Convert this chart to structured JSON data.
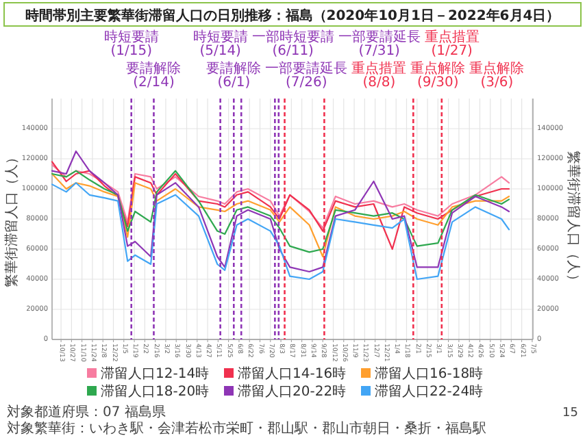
{
  "chart_data": {
    "type": "line",
    "title": "時間帯別主要繁華街滞留人口の日別推移：福島（2020年10月1日－2022年6月4日）",
    "ylabel": "繁華街滞留人口（人）",
    "y2label": "繁華街滞留人口（人）",
    "x": [
      "2020-10-01",
      "2020-10-20",
      "2020-11-02",
      "2020-11-20",
      "2020-12-10",
      "2020-12-28",
      "2021-01-10",
      "2021-01-20",
      "2021-02-10",
      "2021-02-18",
      "2021-03-15",
      "2021-04-15",
      "2021-05-10",
      "2021-05-20",
      "2021-06-05",
      "2021-06-20",
      "2021-07-20",
      "2021-08-01",
      "2021-08-15",
      "2021-09-10",
      "2021-09-28",
      "2021-10-15",
      "2021-11-10",
      "2021-12-05",
      "2021-12-30",
      "2022-01-15",
      "2022-02-01",
      "2022-03-01",
      "2022-03-20",
      "2022-04-20",
      "2022-05-25",
      "2022-06-04"
    ],
    "series": [
      {
        "name": "滞留人口12-14時",
        "color": "#f77ca0",
        "values": [
          116000,
          108000,
          112000,
          110000,
          104000,
          98000,
          78000,
          110000,
          108000,
          100000,
          108000,
          95000,
          92000,
          90000,
          98000,
          100000,
          92000,
          82000,
          96000,
          85000,
          74000,
          95000,
          90000,
          92000,
          88000,
          90000,
          86000,
          82000,
          90000,
          96000,
          108000,
          104000
        ]
      },
      {
        "name": "滞留人口14-16時",
        "color": "#f0304e",
        "values": [
          118000,
          105000,
          110000,
          112000,
          102000,
          95000,
          75000,
          108000,
          104000,
          96000,
          110000,
          92000,
          90000,
          88000,
          96000,
          98000,
          88000,
          80000,
          96000,
          86000,
          72000,
          92000,
          88000,
          90000,
          60000,
          88000,
          84000,
          80000,
          86000,
          95000,
          100000,
          100000
        ]
      },
      {
        "name": "滞留人口16-18時",
        "color": "#ff9f2e",
        "values": [
          110000,
          100000,
          104000,
          102000,
          98000,
          95000,
          68000,
          104000,
          100000,
          92000,
          100000,
          88000,
          86000,
          85000,
          90000,
          92000,
          86000,
          78000,
          88000,
          76000,
          55000,
          88000,
          82000,
          80000,
          82000,
          85000,
          80000,
          76000,
          88000,
          92000,
          92000,
          95000
        ]
      },
      {
        "name": "滞留人口18-20時",
        "color": "#2ea84f",
        "values": [
          110000,
          108000,
          112000,
          106000,
          100000,
          96000,
          72000,
          85000,
          78000,
          98000,
          112000,
          92000,
          72000,
          70000,
          86000,
          88000,
          82000,
          74000,
          62000,
          58000,
          60000,
          86000,
          84000,
          82000,
          84000,
          80000,
          62000,
          64000,
          86000,
          96000,
          90000,
          93000
        ]
      },
      {
        "name": "滞留人口20-22時",
        "color": "#8e35b5",
        "values": [
          112000,
          110000,
          125000,
          112000,
          104000,
          96000,
          62000,
          65000,
          55000,
          96000,
          104000,
          88000,
          55000,
          48000,
          82000,
          86000,
          80000,
          60000,
          48000,
          45000,
          48000,
          82000,
          86000,
          105000,
          80000,
          82000,
          48000,
          48000,
          84000,
          95000,
          88000,
          85000
        ]
      },
      {
        "name": "滞留人口22-24時",
        "color": "#42a5f5",
        "values": [
          103000,
          98000,
          104000,
          96000,
          94000,
          92000,
          52000,
          56000,
          50000,
          90000,
          96000,
          82000,
          50000,
          46000,
          76000,
          80000,
          72000,
          62000,
          42000,
          40000,
          45000,
          80000,
          78000,
          76000,
          74000,
          80000,
          40000,
          42000,
          78000,
          88000,
          80000,
          73000
        ]
      }
    ],
    "xlim": [
      "2020-10-01",
      "2022-07-06"
    ],
    "xticks": [
      {
        "value": "2020-10-13",
        "label": "10/13"
      },
      {
        "value": "2020-10-27",
        "label": "10/27"
      },
      {
        "value": "2020-11-10",
        "label": "11/10"
      },
      {
        "value": "2020-11-24",
        "label": "11/24"
      },
      {
        "value": "2020-12-08",
        "label": "12/8"
      },
      {
        "value": "2020-12-22",
        "label": "12/22"
      },
      {
        "value": "2021-01-05",
        "label": "1/5"
      },
      {
        "value": "2021-01-19",
        "label": "1/19"
      },
      {
        "value": "2021-02-02",
        "label": "2/2"
      },
      {
        "value": "2021-02-16",
        "label": "2/16"
      },
      {
        "value": "2021-03-02",
        "label": "3/2"
      },
      {
        "value": "2021-03-16",
        "label": "3/16"
      },
      {
        "value": "2021-03-30",
        "label": "3/30"
      },
      {
        "value": "2021-04-13",
        "label": "4/13"
      },
      {
        "value": "2021-04-27",
        "label": "4/27"
      },
      {
        "value": "2021-05-11",
        "label": "5/11"
      },
      {
        "value": "2021-05-25",
        "label": "5/25"
      },
      {
        "value": "2021-06-08",
        "label": "6/8"
      },
      {
        "value": "2021-06-22",
        "label": "6/22"
      },
      {
        "value": "2021-07-06",
        "label": "7/6"
      },
      {
        "value": "2021-07-20",
        "label": "7/20"
      },
      {
        "value": "2021-08-03",
        "label": "8/3"
      },
      {
        "value": "2021-08-17",
        "label": "8/17"
      },
      {
        "value": "2021-08-31",
        "label": "8/31"
      },
      {
        "value": "2021-09-14",
        "label": "9/14"
      },
      {
        "value": "2021-09-28",
        "label": "9/28"
      },
      {
        "value": "2021-10-12",
        "label": "10/12"
      },
      {
        "value": "2021-10-26",
        "label": "10/26"
      },
      {
        "value": "2021-11-09",
        "label": "11/9"
      },
      {
        "value": "2021-11-23",
        "label": "11/23"
      },
      {
        "value": "2021-12-07",
        "label": "12/7"
      },
      {
        "value": "2021-12-21",
        "label": "12/21"
      },
      {
        "value": "2022-01-04",
        "label": "1/4"
      },
      {
        "value": "2022-01-18",
        "label": "1/18"
      },
      {
        "value": "2022-02-01",
        "label": "2/1"
      },
      {
        "value": "2022-02-15",
        "label": "2/15"
      },
      {
        "value": "2022-03-01",
        "label": "3/1"
      },
      {
        "value": "2022-03-15",
        "label": "3/15"
      },
      {
        "value": "2022-03-29",
        "label": "3/29"
      },
      {
        "value": "2022-04-12",
        "label": "4/12"
      },
      {
        "value": "2022-04-26",
        "label": "4/26"
      },
      {
        "value": "2022-05-10",
        "label": "5/10"
      },
      {
        "value": "2022-05-24",
        "label": "5/24"
      },
      {
        "value": "2022-06-07",
        "label": "6/7"
      },
      {
        "value": "2022-06-21",
        "label": "6/21"
      },
      {
        "value": "2022-07-05",
        "label": "7/5"
      }
    ],
    "ylim": [
      0,
      160000
    ],
    "yticks": [
      0,
      20000,
      40000,
      60000,
      80000,
      100000,
      120000,
      140000
    ],
    "y2lim": [
      0,
      160000
    ],
    "y2ticks": [
      0,
      20000,
      40000,
      60000,
      80000,
      100000,
      120000,
      140000
    ],
    "ref_lines": [
      {
        "axis": "x",
        "value": "2021-01-15",
        "label": "時短要請 (1/15)",
        "color": "#8e35b5",
        "line_style": "dashed"
      },
      {
        "axis": "x",
        "value": "2021-02-14",
        "label": "要請解除 (2/14)",
        "color": "#8e35b5",
        "line_style": "dashed"
      },
      {
        "axis": "x",
        "value": "2021-05-14",
        "label": "時短要請 (5/14)",
        "color": "#8e35b5",
        "line_style": "dashed"
      },
      {
        "axis": "x",
        "value": "2021-06-01",
        "label": "要請解除 (6/1)",
        "color": "#8e35b5",
        "line_style": "dashed"
      },
      {
        "axis": "x",
        "value": "2021-06-11",
        "label": "一部時短要請 (6/11)",
        "color": "#8e35b5",
        "line_style": "dashed"
      },
      {
        "axis": "x",
        "value": "2021-07-26",
        "label": "一部要請延長 (7/26)",
        "color": "#8e35b5",
        "line_style": "dashed"
      },
      {
        "axis": "x",
        "value": "2021-07-31",
        "label": "一部要請延長 (7/31)",
        "color": "#8e35b5",
        "line_style": "dashed"
      },
      {
        "axis": "x",
        "value": "2021-08-08",
        "label": "重点措置 (8/8)",
        "color": "#f0304e",
        "line_style": "dashed"
      },
      {
        "axis": "x",
        "value": "2021-09-30",
        "label": "重点解除 (9/30)",
        "color": "#f0304e",
        "line_style": "dashed"
      },
      {
        "axis": "x",
        "value": "2022-01-27",
        "label": "重点措置 (1/27)",
        "color": "#f0304e",
        "line_style": "dashed"
      },
      {
        "axis": "x",
        "value": "2022-03-06",
        "label": "重点解除 (3/6)",
        "color": "#f0304e",
        "line_style": "dashed"
      }
    ],
    "annotations": [
      "対象都道府県：07 福島県",
      "対象繁華街：いわき駅・会津若松市栄町・郡山駅・郡山市朝日・桑折・福島駅",
      "15"
    ],
    "grid": true,
    "legend": "bottom",
    "line_style": "solid",
    "marker": "none"
  }
}
